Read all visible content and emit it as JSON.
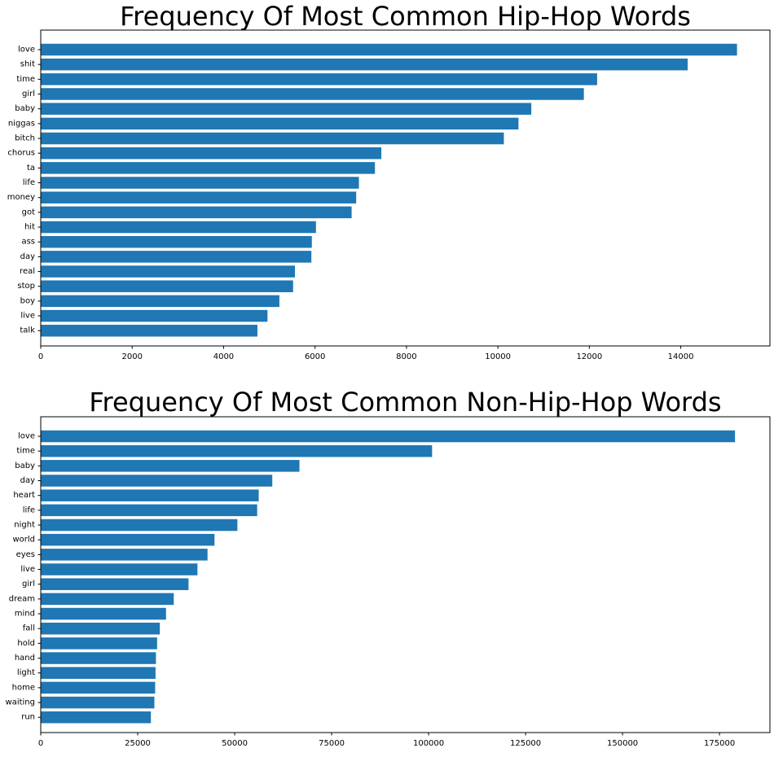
{
  "chart_data": [
    {
      "type": "bar",
      "orientation": "horizontal",
      "title": "Frequency Of Most Common Hip-Hop Words",
      "xlabel": "",
      "ylabel": "",
      "grid": false,
      "xlim": [
        0,
        15950
      ],
      "xticks": [
        0,
        2000,
        4000,
        6000,
        8000,
        10000,
        12000,
        14000
      ],
      "bar_color": "#1f77b4",
      "categories": [
        "love",
        "shit",
        "time",
        "girl",
        "baby",
        "niggas",
        "bitch",
        "chorus",
        "ta",
        "life",
        "money",
        "got",
        "hit",
        "ass",
        "day",
        "real",
        "stop",
        "boy",
        "live",
        "talk"
      ],
      "values": [
        15230,
        14150,
        12170,
        11880,
        10730,
        10450,
        10130,
        7450,
        7310,
        6960,
        6900,
        6800,
        6020,
        5930,
        5920,
        5560,
        5520,
        5220,
        4960,
        4740
      ]
    },
    {
      "type": "bar",
      "orientation": "horizontal",
      "title": "Frequency Of Most Common Non-Hip-Hop Words",
      "xlabel": "",
      "ylabel": "",
      "grid": false,
      "xlim": [
        0,
        188000
      ],
      "xticks": [
        0,
        25000,
        50000,
        75000,
        100000,
        125000,
        150000,
        175000
      ],
      "bar_color": "#1f77b4",
      "categories": [
        "love",
        "time",
        "baby",
        "day",
        "heart",
        "life",
        "night",
        "world",
        "eyes",
        "live",
        "girl",
        "dream",
        "mind",
        "fall",
        "hold",
        "hand",
        "light",
        "home",
        "waiting",
        "run"
      ],
      "values": [
        179000,
        100900,
        66700,
        59700,
        56200,
        55800,
        50700,
        44800,
        43000,
        40400,
        38100,
        34300,
        32300,
        30700,
        30000,
        29700,
        29600,
        29500,
        29300,
        28400
      ]
    }
  ]
}
